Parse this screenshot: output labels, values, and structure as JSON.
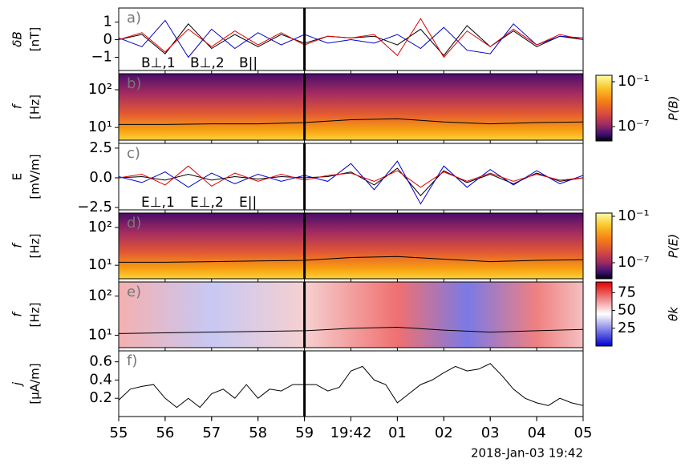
{
  "chart_data": [
    {
      "type": "line",
      "panel_label": "a)",
      "ylabel": [
        "δB",
        "[nT]"
      ],
      "vline": 59,
      "xlim": [
        55,
        65
      ],
      "ylim": [
        -1.75,
        1.8
      ],
      "yticks": [
        {
          "value": -1,
          "label": "−1"
        },
        0,
        1
      ],
      "legend": "lower left",
      "x": [
        55,
        55.5,
        56,
        56.5,
        57,
        57.5,
        58,
        58.5,
        59,
        59.5,
        60,
        60.5,
        61,
        61.5,
        62,
        62.5,
        63,
        63.5,
        64,
        64.5,
        65
      ],
      "series": [
        {
          "name": "B⊥,1",
          "color": "#000000",
          "values": [
            0,
            0.3,
            -0.8,
            0.9,
            -0.5,
            0.3,
            -0.4,
            0.3,
            -0.2,
            0.2,
            0.1,
            0.2,
            -0.3,
            0.6,
            -0.9,
            0.8,
            -0.4,
            0.5,
            -0.4,
            0.2,
            0
          ]
        },
        {
          "name": "B⊥,2",
          "color": "#0000c8",
          "values": [
            0.1,
            -0.4,
            1.1,
            -1.0,
            0.6,
            -0.5,
            0.4,
            -0.3,
            0.3,
            -0.2,
            0,
            -0.2,
            0.3,
            -0.5,
            0.7,
            -0.6,
            -0.8,
            0.9,
            -0.3,
            0.2,
            0.1
          ]
        },
        {
          "name": "B||",
          "color": "#e00000",
          "values": [
            0,
            0.4,
            -0.7,
            0.6,
            -0.4,
            0.5,
            -0.3,
            0.4,
            -0.3,
            0.2,
            0.1,
            0.3,
            -0.9,
            1.2,
            -1.0,
            0.5,
            -0.4,
            0.6,
            -0.3,
            0.3,
            0
          ]
        }
      ]
    },
    {
      "type": "spectrogram",
      "panel_label": "b)",
      "ylabel": [
        "f",
        "[Hz]"
      ],
      "vline": 59,
      "colormap": "inferno",
      "xlim": [
        55,
        65
      ],
      "ylim": [
        4.6,
        266
      ],
      "log_y": true,
      "yticks": [
        {
          "value": 10,
          "label": "10¹"
        },
        {
          "value": 100,
          "label": "10²"
        }
      ],
      "x": [
        55,
        56,
        57,
        58,
        59,
        60,
        61,
        62,
        63,
        64,
        65
      ],
      "series": [
        {
          "color": "#000000",
          "values": [
            12,
            12,
            12.5,
            12.5,
            13.5,
            16,
            17,
            14,
            12.5,
            13.5,
            14
          ]
        }
      ],
      "colorbar": {
        "label": "P(B)",
        "log": true,
        "lim": [
          1.2e-09,
          0.72
        ],
        "ticks": [
          {
            "value": 1e-07,
            "label": "10⁻⁷"
          },
          {
            "value": 0.1,
            "label": "10⁻¹"
          }
        ]
      }
    },
    {
      "type": "line",
      "panel_label": "c)",
      "ylabel": [
        "E",
        "[mV/m]"
      ],
      "vline": 59,
      "xlim": [
        55,
        65
      ],
      "ylim": [
        -2.7,
        2.9
      ],
      "yticks": [
        {
          "value": -2.5,
          "label": "−2.5"
        },
        {
          "value": 0,
          "label": "0.0"
        },
        2.5
      ],
      "legend": "lower left",
      "x": [
        55,
        55.5,
        56,
        56.5,
        57,
        57.5,
        58,
        58.5,
        59,
        59.5,
        60,
        60.5,
        61,
        61.5,
        62,
        62.5,
        63,
        63.5,
        64,
        64.5,
        65
      ],
      "series": [
        {
          "name": "E⊥,1",
          "color": "#000000",
          "values": [
            0,
            0.1,
            -0.2,
            0.3,
            -0.2,
            0.1,
            -0.1,
            0.1,
            0,
            0.1,
            0.5,
            -0.6,
            0.8,
            -1.5,
            0.6,
            -0.4,
            0.3,
            -0.5,
            0.4,
            -0.3,
            0
          ]
        },
        {
          "name": "E⊥,2",
          "color": "#0000c8",
          "values": [
            0.1,
            -0.4,
            0.5,
            -0.8,
            0.4,
            -0.5,
            0.3,
            -0.3,
            0.2,
            -0.3,
            1.2,
            -1.0,
            1.4,
            -2.2,
            1.0,
            -0.8,
            0.7,
            -0.6,
            0.6,
            -0.5,
            0.2
          ]
        },
        {
          "name": "E||",
          "color": "#e00000",
          "values": [
            0,
            0.3,
            -0.6,
            1.0,
            -0.7,
            0.4,
            -0.3,
            0.3,
            -0.2,
            0.2,
            0.4,
            -0.3,
            0.6,
            -0.8,
            0.5,
            -0.3,
            0.4,
            -0.3,
            0.3,
            -0.2,
            0
          ]
        }
      ]
    },
    {
      "type": "spectrogram",
      "panel_label": "d)",
      "ylabel": [
        "f",
        "[Hz]"
      ],
      "vline": 59,
      "colormap": "inferno",
      "xlim": [
        55,
        65
      ],
      "ylim": [
        4.4,
        240
      ],
      "log_y": true,
      "yticks": [
        {
          "value": 10,
          "label": "10¹"
        },
        {
          "value": 100,
          "label": "10²"
        }
      ],
      "x": [
        55,
        56,
        57,
        58,
        59,
        60,
        61,
        62,
        63,
        64,
        65
      ],
      "series": [
        {
          "color": "#000000",
          "values": [
            12,
            12,
            12.5,
            13,
            13.5,
            16,
            17,
            14.5,
            12.5,
            13.5,
            14
          ]
        }
      ],
      "colorbar": {
        "label": "P(E)",
        "log": true,
        "lim": [
          8.5e-10,
          0.26
        ],
        "ticks": [
          {
            "value": 1e-07,
            "label": "10⁻⁷"
          },
          {
            "value": 0.1,
            "label": "10⁻¹"
          }
        ]
      }
    },
    {
      "type": "spectrogram",
      "panel_label": "e)",
      "ylabel": [
        "f",
        "[Hz]"
      ],
      "vline": 59,
      "colormap": "bwr",
      "xlim": [
        55,
        65
      ],
      "ylim": [
        4.8,
        230
      ],
      "log_y": true,
      "yticks": [
        {
          "value": 10,
          "label": "10¹"
        },
        {
          "value": 100,
          "label": "10²"
        }
      ],
      "x": [
        55,
        56,
        57,
        58,
        59,
        60,
        61,
        62,
        63,
        64,
        65
      ],
      "series": [
        {
          "color": "#000000",
          "values": [
            11,
            11.5,
            12,
            12.5,
            13,
            15,
            16,
            13.5,
            12,
            13,
            14
          ]
        }
      ],
      "colorbar": {
        "label": "θk",
        "log": false,
        "lim": [
          0,
          90
        ],
        "ticks": [
          25,
          50,
          75
        ]
      }
    },
    {
      "type": "line",
      "panel_label": "f)",
      "ylabel": [
        "j",
        "[μA/m]"
      ],
      "vline": 59,
      "xlim": [
        55,
        65
      ],
      "ylim": [
        0,
        0.72
      ],
      "yticks": [
        0.2,
        0.4,
        0.6
      ],
      "xticks": [
        55,
        56,
        57,
        58,
        59,
        {
          "value": 60,
          "label": "19:42"
        },
        {
          "value": 61,
          "label": "01"
        },
        {
          "value": 62,
          "label": "02"
        },
        {
          "value": 63,
          "label": "03"
        },
        {
          "value": 64,
          "label": "04"
        },
        {
          "value": 65,
          "label": "05"
        }
      ],
      "xlabel": "2018-Jan-03 19:42",
      "x": [
        55,
        55.25,
        55.5,
        55.75,
        56,
        56.25,
        56.5,
        56.75,
        57,
        57.25,
        57.5,
        57.75,
        58,
        58.25,
        58.5,
        58.75,
        59,
        59.25,
        59.5,
        59.75,
        60,
        60.25,
        60.5,
        60.75,
        61,
        61.25,
        61.5,
        61.75,
        62,
        62.25,
        62.5,
        62.75,
        63,
        63.25,
        63.5,
        63.75,
        64,
        64.25,
        64.5,
        64.75,
        65
      ],
      "series": [
        {
          "color": "#000000",
          "values": [
            0.18,
            0.3,
            0.33,
            0.35,
            0.2,
            0.1,
            0.2,
            0.1,
            0.25,
            0.3,
            0.2,
            0.35,
            0.2,
            0.3,
            0.28,
            0.35,
            0.35,
            0.35,
            0.28,
            0.32,
            0.5,
            0.55,
            0.4,
            0.35,
            0.15,
            0.25,
            0.35,
            0.4,
            0.48,
            0.55,
            0.5,
            0.52,
            0.58,
            0.45,
            0.3,
            0.2,
            0.15,
            0.12,
            0.2,
            0.15,
            0.12
          ]
        }
      ]
    }
  ]
}
